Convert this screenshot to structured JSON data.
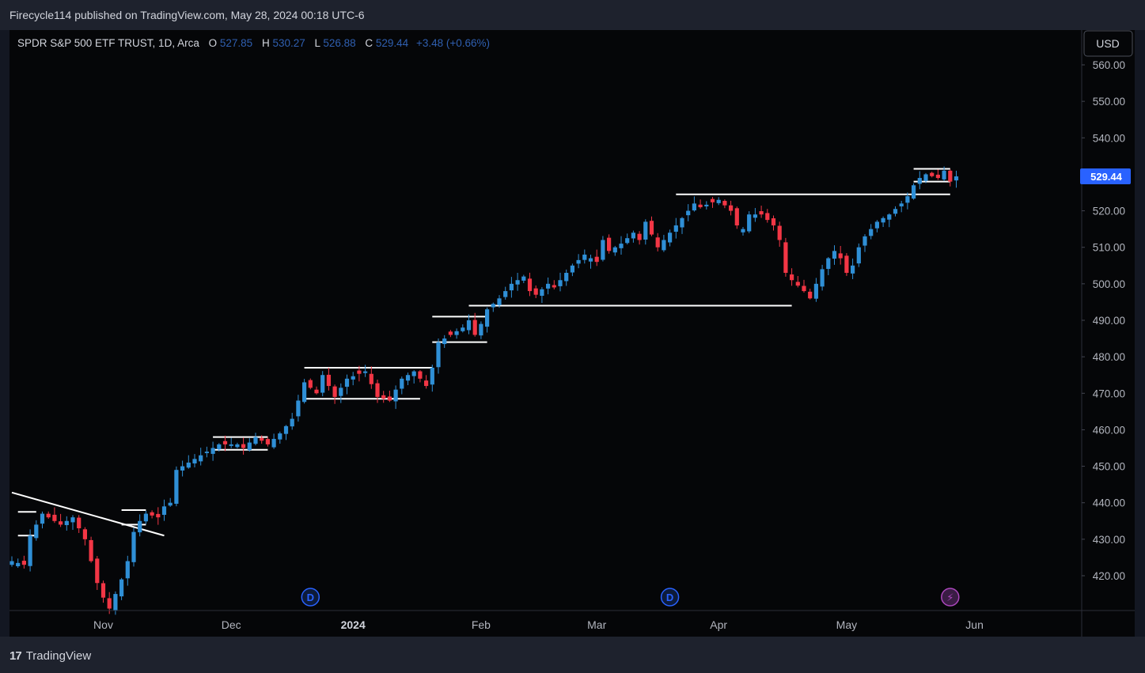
{
  "header": {
    "published": "Firecycle114 published on TradingView.com, May 28, 2024 00:18 UTC-6"
  },
  "legend": {
    "symbol": "SPDR S&P 500 ETF TRUST, 1D, Arca",
    "o_label": "O",
    "o_value": "527.85",
    "h_label": "H",
    "h_value": "530.27",
    "l_label": "L",
    "l_value": "526.88",
    "c_label": "C",
    "c_value": "529.44",
    "change": "+3.48 (+0.66%)"
  },
  "currency_button": "USD",
  "footer": {
    "brand": "TradingView",
    "logo": "17"
  },
  "colors": {
    "up": "#2f8fd6",
    "down": "#f23645",
    "bg": "#050608",
    "text": "#b2b5be",
    "price_tag": "#2962ff"
  },
  "chart_data": {
    "type": "candlestick",
    "y_ticks": [
      420,
      430,
      440,
      450,
      460,
      470,
      480,
      490,
      500,
      510,
      520,
      530,
      540,
      550,
      560
    ],
    "y_tick_labels": [
      "420.00",
      "430.00",
      "440.00",
      "450.00",
      "460.00",
      "470.00",
      "480.00",
      "490.00",
      "500.00",
      "510.00",
      "520.00",
      "530.00",
      "540.00",
      "550.00",
      "560.00"
    ],
    "ylim": [
      410,
      565
    ],
    "last_price": 529.44,
    "last_price_label": "529.44",
    "x_labels": [
      {
        "label": "Nov",
        "index": 15,
        "bold": false
      },
      {
        "label": "Dec",
        "index": 36,
        "bold": false
      },
      {
        "label": "2024",
        "index": 56,
        "bold": true
      },
      {
        "label": "Feb",
        "index": 77,
        "bold": false
      },
      {
        "label": "Mar",
        "index": 96,
        "bold": false
      },
      {
        "label": "Apr",
        "index": 116,
        "bold": false
      },
      {
        "label": "May",
        "index": 137,
        "bold": false
      },
      {
        "label": "Jun",
        "index": 158,
        "bold": false
      }
    ],
    "events": [
      {
        "index": 49,
        "type": "dividend",
        "label": "D"
      },
      {
        "index": 108,
        "type": "dividend",
        "label": "D"
      },
      {
        "index": 154,
        "type": "split",
        "label": "⚡"
      }
    ],
    "anchors": [
      [
        0,
        424
      ],
      [
        2,
        423
      ],
      [
        3,
        431
      ],
      [
        5,
        437
      ],
      [
        8,
        434
      ],
      [
        10,
        436
      ],
      [
        12,
        430
      ],
      [
        13,
        424
      ],
      [
        14,
        418
      ],
      [
        15,
        414
      ],
      [
        16,
        411
      ],
      [
        17,
        415
      ],
      [
        18,
        419
      ],
      [
        19,
        424
      ],
      [
        20,
        432
      ],
      [
        21,
        435
      ],
      [
        22,
        437
      ],
      [
        24,
        436
      ],
      [
        25,
        439
      ],
      [
        26,
        440
      ],
      [
        27,
        449
      ],
      [
        30,
        452
      ],
      [
        33,
        455
      ],
      [
        34,
        456
      ],
      [
        37,
        456
      ],
      [
        38,
        455
      ],
      [
        40,
        458
      ],
      [
        42,
        456
      ],
      [
        44,
        459
      ],
      [
        46,
        463
      ],
      [
        47,
        468
      ],
      [
        48,
        473
      ],
      [
        50,
        470
      ],
      [
        51,
        475
      ],
      [
        53,
        469
      ],
      [
        55,
        474
      ],
      [
        58,
        476
      ],
      [
        60,
        469
      ],
      [
        62,
        468
      ],
      [
        64,
        474
      ],
      [
        66,
        476
      ],
      [
        68,
        472
      ],
      [
        69,
        477
      ],
      [
        70,
        484
      ],
      [
        72,
        486
      ],
      [
        74,
        488
      ],
      [
        75,
        490
      ],
      [
        76,
        486
      ],
      [
        77,
        489
      ],
      [
        78,
        493
      ],
      [
        80,
        496
      ],
      [
        82,
        500
      ],
      [
        84,
        502
      ],
      [
        85,
        498
      ],
      [
        86,
        497
      ],
      [
        88,
        500
      ],
      [
        89,
        499
      ],
      [
        92,
        505
      ],
      [
        94,
        508
      ],
      [
        96,
        506
      ],
      [
        97,
        512
      ],
      [
        98,
        509
      ],
      [
        100,
        511
      ],
      [
        102,
        514
      ],
      [
        103,
        512
      ],
      [
        104,
        517
      ],
      [
        106,
        510
      ],
      [
        108,
        514
      ],
      [
        110,
        518
      ],
      [
        112,
        522
      ],
      [
        113,
        521
      ],
      [
        116,
        523
      ],
      [
        118,
        520
      ],
      [
        119,
        516
      ],
      [
        120,
        515
      ],
      [
        121,
        519
      ],
      [
        123,
        519
      ],
      [
        125,
        516
      ],
      [
        126,
        512
      ],
      [
        127,
        503
      ],
      [
        128,
        501
      ],
      [
        130,
        498
      ],
      [
        131,
        496
      ],
      [
        132,
        500
      ],
      [
        133,
        504
      ],
      [
        134,
        507
      ],
      [
        135,
        509
      ],
      [
        136,
        507
      ],
      [
        137,
        503
      ],
      [
        138,
        505
      ],
      [
        139,
        510
      ],
      [
        140,
        513
      ],
      [
        142,
        517
      ],
      [
        144,
        519
      ],
      [
        146,
        522
      ],
      [
        147,
        524
      ],
      [
        148,
        527
      ],
      [
        149,
        529
      ],
      [
        150,
        530
      ],
      [
        152,
        529
      ],
      [
        153,
        531
      ],
      [
        154,
        528
      ],
      [
        155,
        529.44
      ]
    ],
    "drawn_levels": [
      {
        "i1": 1,
        "i2": 4,
        "y": 437.5
      },
      {
        "i1": 1,
        "i2": 4,
        "y": 431.0
      },
      {
        "i1": 18,
        "i2": 22,
        "y": 438.0
      },
      {
        "i1": 18,
        "i2": 22,
        "y": 434.0
      },
      {
        "i1": 33,
        "i2": 42,
        "y": 458.0
      },
      {
        "i1": 33,
        "i2": 42,
        "y": 454.5
      },
      {
        "i1": 48,
        "i2": 69,
        "y": 477.0
      },
      {
        "i1": 48,
        "i2": 67,
        "y": 468.5
      },
      {
        "i1": 69,
        "i2": 78,
        "y": 491.0
      },
      {
        "i1": 69,
        "i2": 78,
        "y": 484.0
      },
      {
        "i1": 75,
        "i2": 128,
        "y": 494.0
      },
      {
        "i1": 109,
        "i2": 154,
        "y": 524.5
      },
      {
        "i1": 148,
        "i2": 154,
        "y": 531.5
      },
      {
        "i1": 148,
        "i2": 154,
        "y": 528.0
      }
    ],
    "trendline": {
      "i1": 0,
      "y1": 442.8,
      "i2": 25,
      "y2": 431.0
    }
  }
}
